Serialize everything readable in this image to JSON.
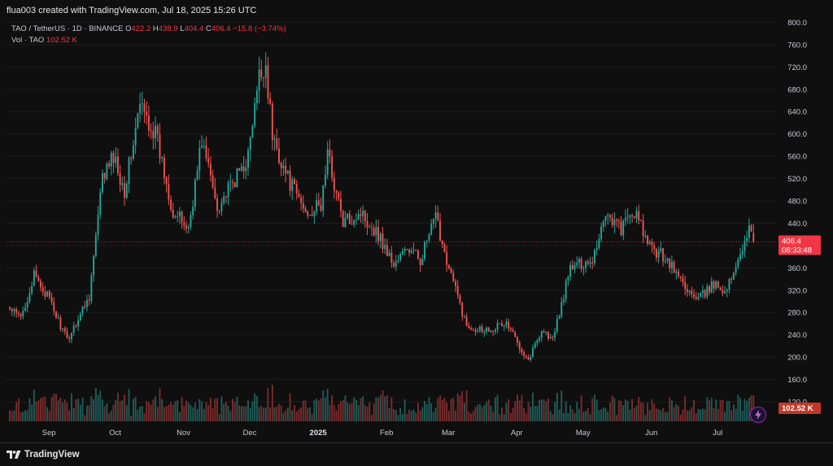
{
  "header": {
    "created_text": "flua003 created with TradingView.com, Jul 18, 2025 15:26 UTC"
  },
  "legend": {
    "symbol": "TAO / TetherUS · 1D · BINANCE",
    "o_label": "O",
    "o_value": "422.2",
    "h_label": "H",
    "h_value": "438.9",
    "l_label": "L",
    "l_value": "404.4",
    "c_label": "C",
    "c_value": "406.4",
    "change": "−15.8 (−3.74%)",
    "vol_label": "Vol · TAO",
    "vol_value": "102.52 K"
  },
  "price_badge": {
    "price": "406.4",
    "countdown": "08:33:48"
  },
  "volume_badge": "102.52 K",
  "footer": {
    "logo_text": "TradingView"
  },
  "colors": {
    "up": "#26a69a",
    "down": "#ef5350",
    "up_vol": "#1f5c57",
    "down_vol": "#7a2c2c",
    "last_price_line": "#f23645",
    "background": "#0f0f0f",
    "bolt": "#9c27b0"
  },
  "chart_data": {
    "type": "candlestick",
    "symbol": "TAO / TetherUS",
    "interval": "1D",
    "exchange": "BINANCE",
    "last_ohlc": {
      "open": 422.2,
      "high": 438.9,
      "low": 404.4,
      "close": 406.4
    },
    "y_axis": {
      "ylim": [
        85,
        805
      ],
      "ticks": [
        "800.0",
        "760.0",
        "720.0",
        "680.0",
        "640.0",
        "600.0",
        "560.0",
        "520.0",
        "480.0",
        "440.0",
        "400.0",
        "360.0",
        "320.0",
        "280.0",
        "240.0",
        "200.0",
        "160.0",
        "120.0"
      ]
    },
    "x_axis": {
      "ticks": [
        "Sep",
        "Oct",
        "Nov",
        "Dec",
        "2025",
        "Feb",
        "Mar",
        "Apr",
        "May",
        "Jun",
        "Jul"
      ],
      "bold": [
        "2025"
      ]
    },
    "anchors": [
      [
        "2024-08-15",
        285
      ],
      [
        "2024-08-20",
        270
      ],
      [
        "2024-08-26",
        345
      ],
      [
        "2024-09-01",
        310
      ],
      [
        "2024-09-10",
        230
      ],
      [
        "2024-09-20",
        310
      ],
      [
        "2024-09-26",
        520
      ],
      [
        "2024-10-01",
        560
      ],
      [
        "2024-10-06",
        500
      ],
      [
        "2024-10-13",
        650
      ],
      [
        "2024-10-20",
        600
      ],
      [
        "2024-10-28",
        460
      ],
      [
        "2024-11-04",
        430
      ],
      [
        "2024-11-10",
        590
      ],
      [
        "2024-11-17",
        470
      ],
      [
        "2024-11-24",
        510
      ],
      [
        "2024-12-01",
        560
      ],
      [
        "2024-12-06",
        700
      ],
      [
        "2024-12-09",
        725
      ],
      [
        "2024-12-12",
        595
      ],
      [
        "2024-12-19",
        520
      ],
      [
        "2024-12-27",
        460
      ],
      [
        "2025-01-03",
        470
      ],
      [
        "2025-01-06",
        565
      ],
      [
        "2025-01-13",
        440
      ],
      [
        "2025-01-21",
        460
      ],
      [
        "2025-01-29",
        420
      ],
      [
        "2025-02-05",
        365
      ],
      [
        "2025-02-11",
        395
      ],
      [
        "2025-02-17",
        375
      ],
      [
        "2025-02-24",
        450
      ],
      [
        "2025-03-02",
        360
      ],
      [
        "2025-03-10",
        255
      ],
      [
        "2025-03-19",
        250
      ],
      [
        "2025-03-28",
        260
      ],
      [
        "2025-04-07",
        195
      ],
      [
        "2025-04-13",
        250
      ],
      [
        "2025-04-18",
        230
      ],
      [
        "2025-04-26",
        360
      ],
      [
        "2025-05-06",
        375
      ],
      [
        "2025-05-12",
        460
      ],
      [
        "2025-05-19",
        430
      ],
      [
        "2025-05-25",
        460
      ],
      [
        "2025-06-01",
        395
      ],
      [
        "2025-06-08",
        380
      ],
      [
        "2025-06-13",
        350
      ],
      [
        "2025-06-22",
        300
      ],
      [
        "2025-06-30",
        330
      ],
      [
        "2025-07-06",
        320
      ],
      [
        "2025-07-13",
        400
      ],
      [
        "2025-07-16",
        430
      ],
      [
        "2025-07-18",
        406.4
      ]
    ]
  }
}
